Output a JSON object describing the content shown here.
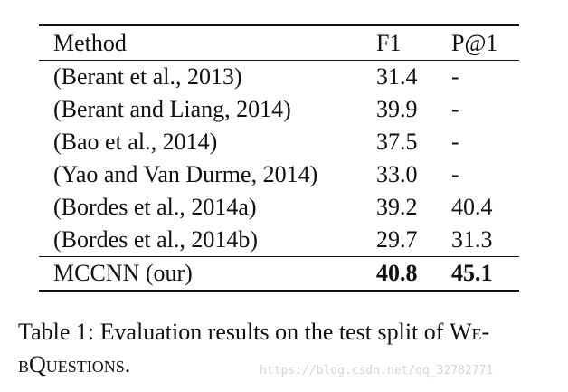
{
  "table": {
    "headers": {
      "method": "Method",
      "f1": "F1",
      "p1": "P@1"
    },
    "rows": [
      {
        "method": "(Berant et al., 2013)",
        "f1": "31.4",
        "p1": "-"
      },
      {
        "method": "(Berant and Liang, 2014)",
        "f1": "39.9",
        "p1": "-"
      },
      {
        "method": "(Bao et al., 2014)",
        "f1": "37.5",
        "p1": "-"
      },
      {
        "method": "(Yao and Van Durme, 2014)",
        "f1": "33.0",
        "p1": "-"
      },
      {
        "method": "(Bordes et al., 2014a)",
        "f1": "39.2",
        "p1": "40.4"
      },
      {
        "method": "(Bordes et al., 2014b)",
        "f1": "29.7",
        "p1": "31.3"
      }
    ],
    "ours": {
      "method": "MCCNN (our)",
      "f1": "40.8",
      "p1": "45.1"
    }
  },
  "caption": {
    "line1_prefix": "Table 1: Evaluation results on the test split of ",
    "line1_smallcaps": "We-",
    "line2_smallcaps": "bQuestions",
    "line2_suffix": "."
  },
  "watermark": "https://blog.csdn.net/qq_32782771"
}
